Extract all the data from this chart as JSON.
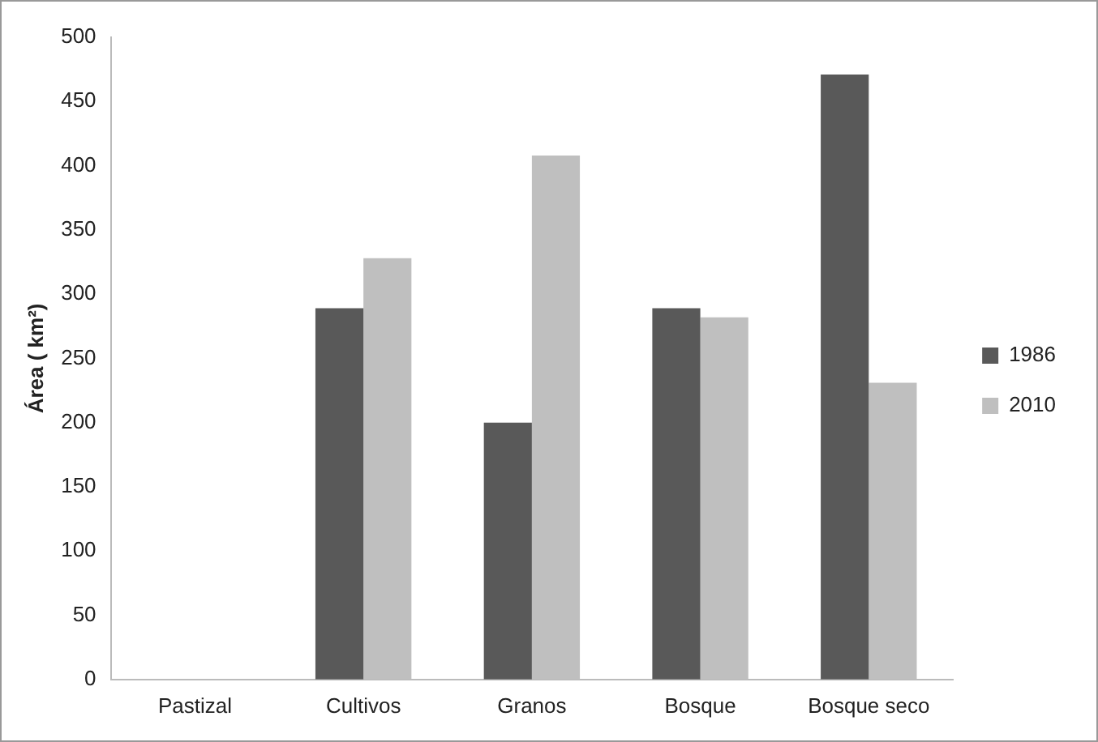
{
  "chart_data": {
    "type": "bar",
    "ylabel": "Área ( km²)",
    "categories": [
      "Pastizal",
      "Cultivos",
      "Granos",
      "Bosque",
      "Bosque seco"
    ],
    "series": [
      {
        "name": "1986",
        "color": "#595959",
        "values": [
          0,
          289,
          200,
          289,
          471
        ]
      },
      {
        "name": "2010",
        "color": "#bfbfbf",
        "values": [
          0,
          328,
          408,
          282,
          231
        ]
      }
    ],
    "ylim": [
      0,
      500
    ],
    "yticks": [
      0,
      50,
      100,
      150,
      200,
      250,
      300,
      350,
      400,
      450,
      500
    ],
    "grid": false,
    "legend": "right"
  }
}
